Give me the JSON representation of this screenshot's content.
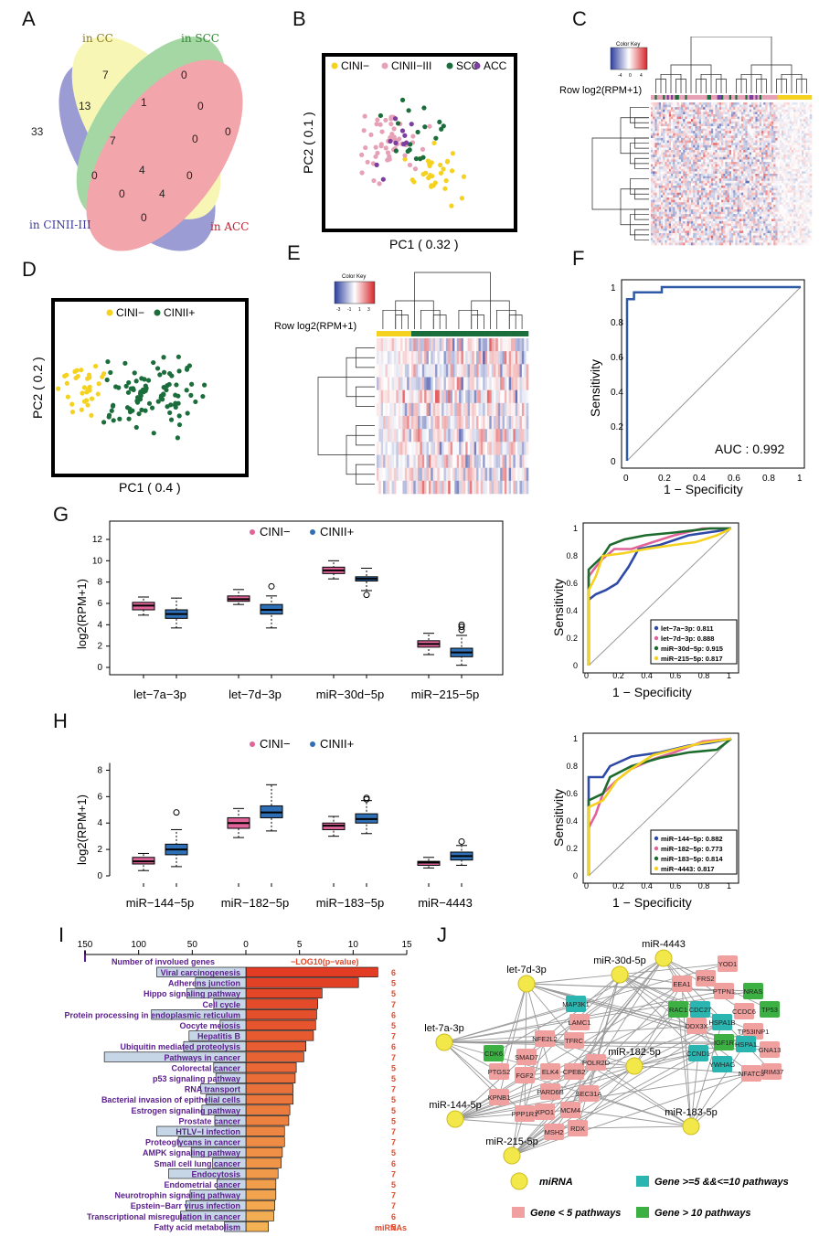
{
  "letters": {
    "A": "A",
    "B": "B",
    "C": "C",
    "D": "D",
    "E": "E",
    "F": "F",
    "G": "G",
    "H": "H",
    "I": "I",
    "J": "J"
  },
  "colors": {
    "cin1": "#f4d21f",
    "cin23": "#e7a1b6",
    "scc": "#1b6e3b",
    "acc": "#7b3fa0",
    "blue": "#2f6fb5",
    "pink": "#e0649a",
    "green": "#1e6b2e",
    "yellow": "#f4d21f",
    "bar_red": "#e2482a",
    "bar_orange": "#f0a53a",
    "purple": "#5a1c8c",
    "node_pink": "#f1a0a0",
    "node_teal": "#2bb5b0",
    "node_green": "#3cb043"
  },
  "venn": {
    "labels": {
      "cc": "in CC",
      "scc": "in SCC",
      "cin": "in CINII-III",
      "acc": "in ACC"
    },
    "counts": [
      "7",
      "0",
      "33",
      "0",
      "13",
      "1",
      "0",
      "7",
      "0",
      "4",
      "0",
      "0",
      "4",
      "0",
      "0"
    ]
  },
  "pcaB": {
    "legend": [
      "CINI−",
      "CINII−III",
      "SCC",
      "ACC"
    ],
    "xlabel": "PC1 ( 0.32 )",
    "ylabel": "PC2 ( 0.1 )"
  },
  "heatC": {
    "color_key": "Color Key",
    "row_label": "Row log2(RPM+1)",
    "key_ticks": [
      "-4",
      "0",
      "4"
    ]
  },
  "pcaD": {
    "legend": [
      "CINI−",
      "CINII+"
    ],
    "xlabel": "PC1 ( 0.4 )",
    "ylabel": "PC2 ( 0.2 )"
  },
  "heatE": {
    "color_key": "Color Key",
    "row_label": "Row log2(RPM+1)",
    "key_ticks": [
      "-3",
      "-1",
      "1",
      "3"
    ]
  },
  "rocF": {
    "xlabel": "1 − Specificity",
    "ylabel": "Sensitivity",
    "auc": "AUC : 0.992",
    "ticks": [
      "0",
      "0.2",
      "0.4",
      "0.6",
      "0.8",
      "1"
    ]
  },
  "boxG": {
    "legend": [
      "CINI−",
      "CINII+"
    ],
    "ylabel": "log2(RPM+1)",
    "categories": [
      "let−7a−3p",
      "let−7d−3p",
      "miR−30d−5p",
      "miR−215−5p"
    ],
    "yticks": [
      "0",
      "2",
      "4",
      "6",
      "8",
      "10",
      "12"
    ]
  },
  "rocG": {
    "xlabel": "1 − Specificity",
    "ylabel": "Sensitivity",
    "ticks": [
      "0",
      "0.2",
      "0.4",
      "0.6",
      "0.8",
      "1"
    ],
    "legend": [
      "let−7a−3p: 0.811",
      "let−7d−3p: 0.888",
      "miR−30d−5p: 0.915",
      "miR−215−5p: 0.817"
    ]
  },
  "boxH": {
    "legend": [
      "CINI−",
      "CINII+"
    ],
    "ylabel": "log2(RPM+1)",
    "categories": [
      "miR−144−5p",
      "miR−182−5p",
      "miR−183−5p",
      "miR−4443"
    ],
    "yticks": [
      "0",
      "2",
      "4",
      "6",
      "8"
    ]
  },
  "rocH": {
    "xlabel": "1 − Specificity",
    "ylabel": "Sensitivity",
    "ticks": [
      "0",
      "0.2",
      "0.4",
      "0.6",
      "0.8",
      "1"
    ],
    "legend": [
      "miR−144−5p: 0.882",
      "miR−182−5p: 0.773",
      "miR−183−5p: 0.814",
      "miR−4443: 0.817"
    ]
  },
  "chart_data": [
    {
      "type": "bar",
      "title": "",
      "left_axis_label": "Number of involued genes",
      "right_axis_label": "−LOG10(p−value)",
      "right_column_label": "miRNAs",
      "left_ticks": [
        "150",
        "100",
        "50",
        "0"
      ],
      "right_ticks": [
        "5",
        "10",
        "15"
      ],
      "categories": [
        "Viral carcinogenesis",
        "Adherens junction",
        "Hippo signaling pathway",
        "Cell cycle",
        "Protein processing in endoplasmic reticulum",
        "Oocyte meiosis",
        "Hepatitis B",
        "Ubiquitin mediated proteolysis",
        "Pathways in cancer",
        "Colorectal cancer",
        "p53 signaling pathway",
        "RNA transport",
        "Bacterial invasion of epithelial cells",
        "Estrogen signaling pathway",
        "Prostate cancer",
        "HTLV−I infection",
        "Proteoglycans in cancer",
        "AMPK signaling pathway",
        "Small cell lung cancer",
        "Endocytosis",
        "Endometrial cancer",
        "Neurotrophin signaling pathway",
        "Epstein−Barr virus infection",
        "Transcriptional misregulation in cancer",
        "Fatty acid metabolism"
      ],
      "neglog10p": [
        12.3,
        10.5,
        7.1,
        6.7,
        6.6,
        6.5,
        6.3,
        5.6,
        5.4,
        4.7,
        4.6,
        4.4,
        4.4,
        4.1,
        4.0,
        3.6,
        3.6,
        3.4,
        3.3,
        3.0,
        2.8,
        2.8,
        2.7,
        2.6,
        2.1
      ],
      "genes": [
        83,
        47,
        55,
        30,
        88,
        24,
        53,
        58,
        132,
        30,
        28,
        42,
        37,
        41,
        29,
        83,
        63,
        51,
        31,
        72,
        27,
        52,
        56,
        61,
        20
      ],
      "mirnas": [
        "6",
        "5",
        "5",
        "7",
        "6",
        "5",
        "7",
        "6",
        "7",
        "5",
        "5",
        "7",
        "5",
        "5",
        "5",
        "7",
        "7",
        "5",
        "6",
        "7",
        "5",
        "7",
        "7",
        "6",
        "5"
      ]
    }
  ],
  "network": {
    "mirnas": [
      "let-7d-3p",
      "miR-30d-5p",
      "miR-4443",
      "let-7a-3p",
      "miR-182-5p",
      "miR-144-5p",
      "miR-183-5p",
      "miR-215-5p"
    ],
    "genes_pink": [
      "YOD1",
      "FRS2",
      "EEA1",
      "PTPN1",
      "CCDC6",
      "TP53INP1",
      "GNA13",
      "TRIM37",
      "NFATC3",
      "DDX3X",
      "LAMC1",
      "NFE2L2",
      "TFRC",
      "SMAD7",
      "FGF2",
      "ELK4",
      "CPEB2",
      "POLR2D",
      "PTGS2",
      "PARD6B",
      "SEC31A",
      "KPNB1",
      "XPO1",
      "MCM4",
      "PPP1R1",
      "MSH2",
      "RDX"
    ],
    "genes_teal": [
      "MAP3K1",
      "CDC27",
      "HSPA1B",
      "HSPA1",
      "YWHAG",
      "CCND1"
    ],
    "genes_green": [
      "NRAS",
      "TP53",
      "RAC1",
      "IGF1R",
      "CDK6"
    ],
    "legend": {
      "mirna": "miRNA",
      "teal": "Gene >=5 &&<=10 pathways",
      "pink": "Gene < 5 pathways",
      "green": "Gene > 10 pathways"
    }
  }
}
